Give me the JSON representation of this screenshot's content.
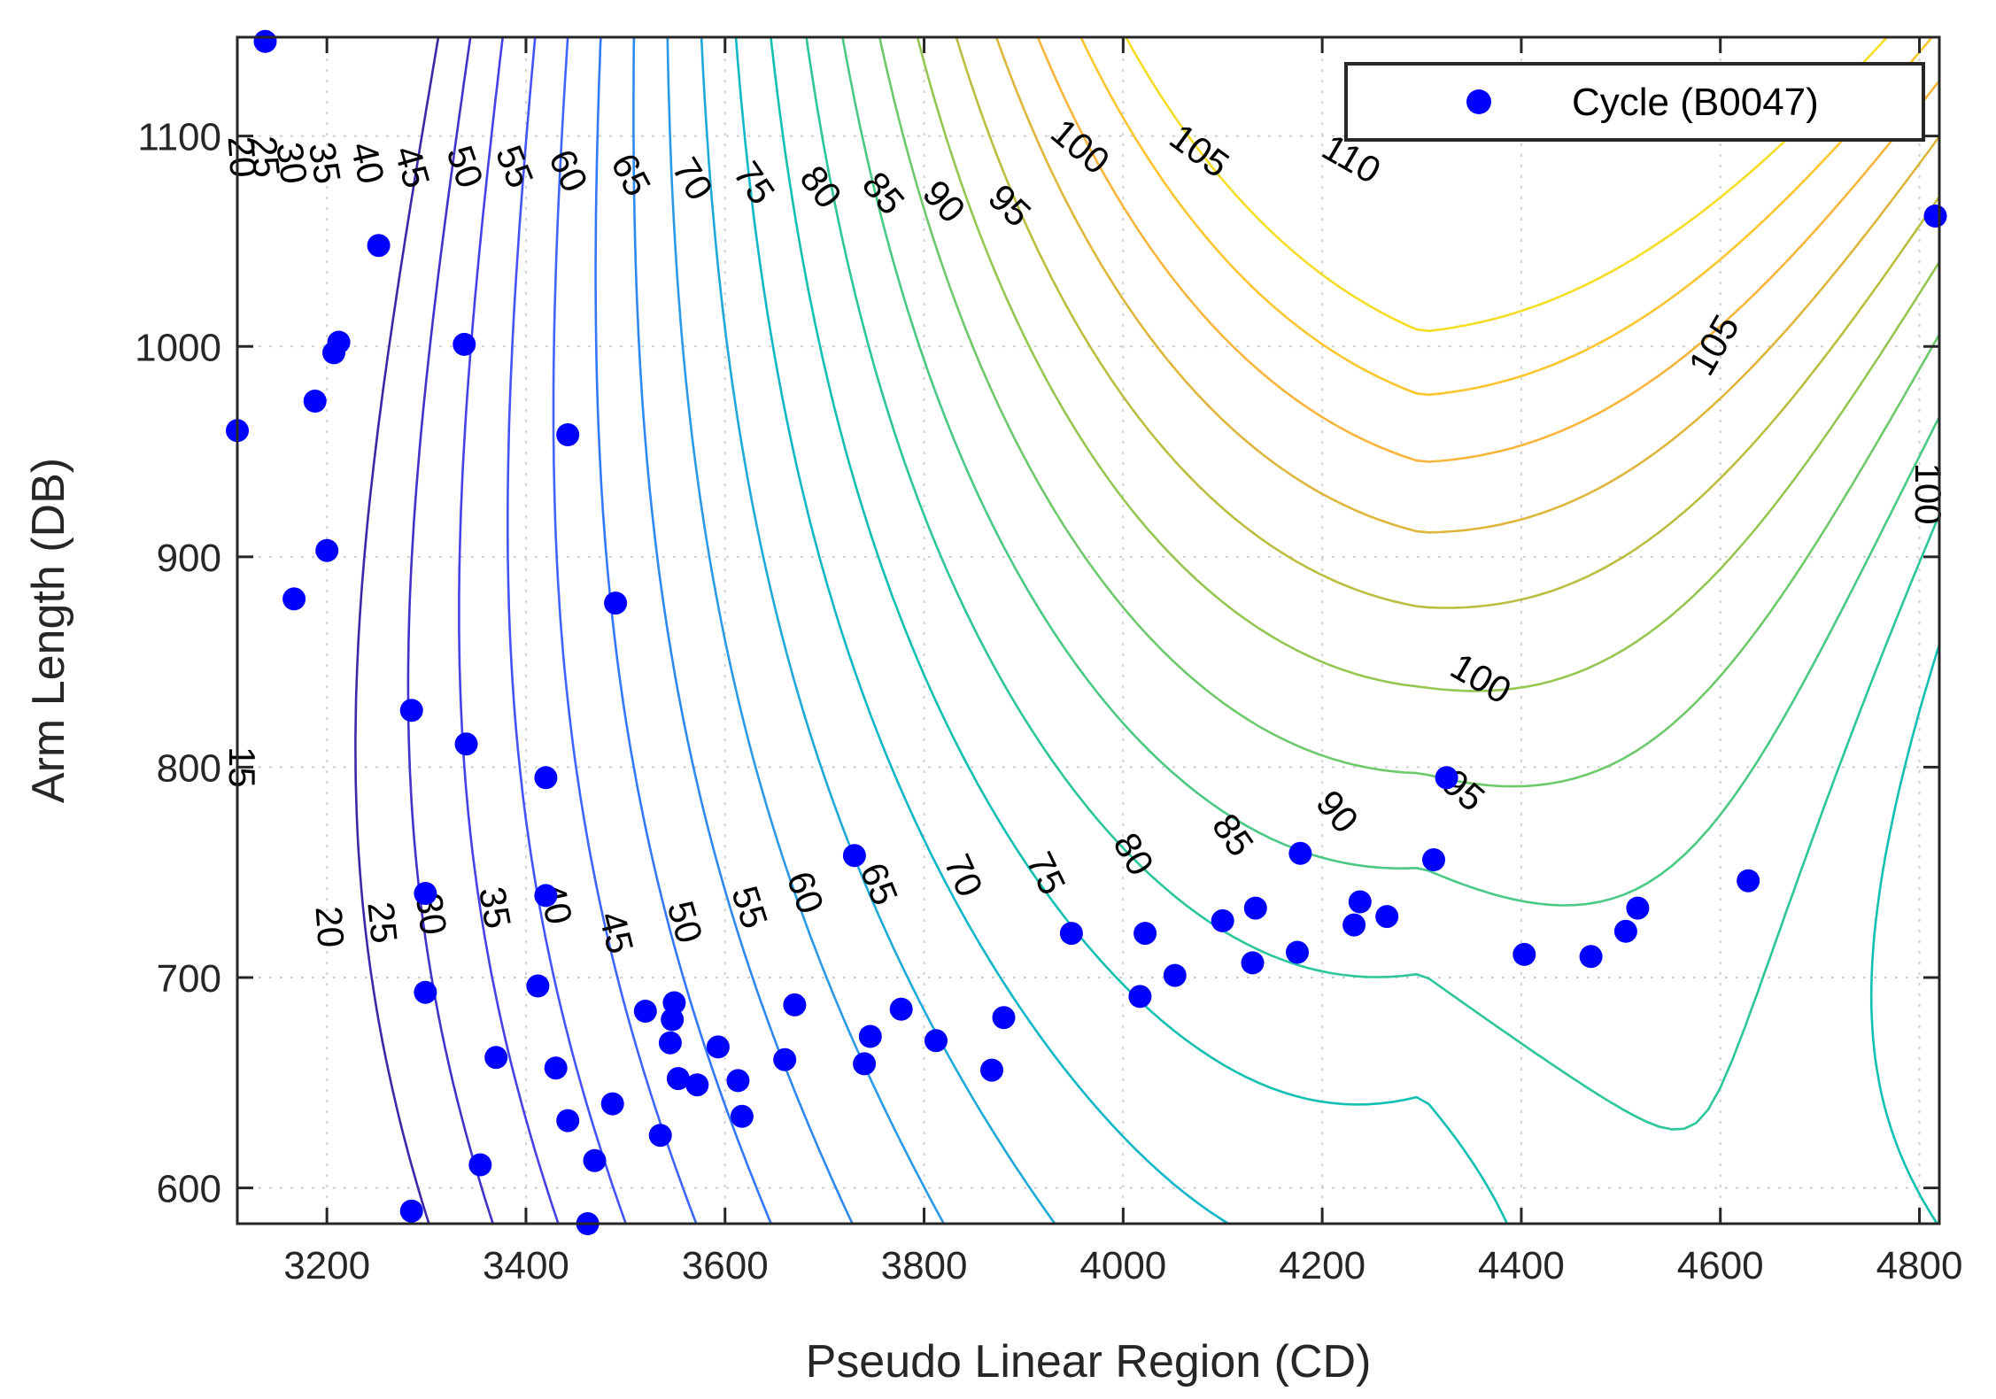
{
  "chart_data": {
    "type": "scatter",
    "overlay": "contour",
    "xlabel": "Pseudo Linear Region (CD)",
    "ylabel": "Arm Length (DB)",
    "xlim": [
      3110,
      4820
    ],
    "ylim": [
      583,
      1147
    ],
    "xticks": [
      3200,
      3400,
      3600,
      3800,
      4000,
      4200,
      4400,
      4600,
      4800
    ],
    "yticks": [
      600,
      700,
      800,
      900,
      1000,
      1100
    ],
    "grid": true,
    "legend_position": "top-right",
    "legend": [
      "Cycle (B0047)"
    ],
    "series": [
      {
        "name": "Cycle (B0047)",
        "color": "#0000ff",
        "points": [
          [
            3138,
            1145
          ],
          [
            3110,
            960
          ],
          [
            3252,
            1048
          ],
          [
            3212,
            1002
          ],
          [
            3207,
            997
          ],
          [
            3338,
            1001
          ],
          [
            3188,
            974
          ],
          [
            3442,
            958
          ],
          [
            3200,
            903
          ],
          [
            3167,
            880
          ],
          [
            3490,
            878
          ],
          [
            3285,
            827
          ],
          [
            3340,
            811
          ],
          [
            3420,
            795
          ],
          [
            3730,
            758
          ],
          [
            4178,
            759
          ],
          [
            4312,
            756
          ],
          [
            4325,
            795
          ],
          [
            4628,
            746
          ],
          [
            4816,
            1062
          ],
          [
            3299,
            740
          ],
          [
            3420,
            739
          ],
          [
            3948,
            721
          ],
          [
            4022,
            721
          ],
          [
            4100,
            727
          ],
          [
            4133,
            733
          ],
          [
            4238,
            736
          ],
          [
            4265,
            729
          ],
          [
            4232,
            725
          ],
          [
            4517,
            733
          ],
          [
            4505,
            722
          ],
          [
            4130,
            707
          ],
          [
            4175,
            712
          ],
          [
            4052,
            701
          ],
          [
            4403,
            711
          ],
          [
            4470,
            710
          ],
          [
            3412,
            696
          ],
          [
            3299,
            693
          ],
          [
            4017,
            691
          ],
          [
            3520,
            684
          ],
          [
            3549,
            688
          ],
          [
            3670,
            687
          ],
          [
            3777,
            685
          ],
          [
            3547,
            680
          ],
          [
            3880,
            681
          ],
          [
            3746,
            672
          ],
          [
            3812,
            670
          ],
          [
            3545,
            669
          ],
          [
            3593,
            667
          ],
          [
            3370,
            662
          ],
          [
            3660,
            661
          ],
          [
            3740,
            659
          ],
          [
            3430,
            657
          ],
          [
            3868,
            656
          ],
          [
            3553,
            652
          ],
          [
            3613,
            651
          ],
          [
            3572,
            649
          ],
          [
            3487,
            640
          ],
          [
            3617,
            634
          ],
          [
            3442,
            632
          ],
          [
            3535,
            625
          ],
          [
            3469,
            613
          ],
          [
            3354,
            611
          ],
          [
            3285,
            589
          ],
          [
            3462,
            583
          ]
        ]
      }
    ],
    "contours": [
      {
        "level": 15,
        "color": "#3e26a8"
      },
      {
        "level": 20,
        "color": "#4132c8"
      },
      {
        "level": 25,
        "color": "#4442e5"
      },
      {
        "level": 30,
        "color": "#4453f8"
      },
      {
        "level": 35,
        "color": "#3e64fe"
      },
      {
        "level": 40,
        "color": "#3377fb"
      },
      {
        "level": 45,
        "color": "#2d89f0"
      },
      {
        "level": 50,
        "color": "#2a9ae6"
      },
      {
        "level": 55,
        "color": "#1eaad8"
      },
      {
        "level": 60,
        "color": "#10b7c6"
      },
      {
        "level": 65,
        "color": "#11c0b1"
      },
      {
        "level": 70,
        "color": "#2bc69a"
      },
      {
        "level": 75,
        "color": "#4ac985"
      },
      {
        "level": 80,
        "color": "#6ec96c"
      },
      {
        "level": 85,
        "color": "#95c652"
      },
      {
        "level": 90,
        "color": "#bbbe3f"
      },
      {
        "level": 95,
        "color": "#ddb63b"
      },
      {
        "level": 100,
        "color": "#f7b53c"
      },
      {
        "level": 105,
        "color": "#fbc52d"
      },
      {
        "level": 110,
        "color": "#f5dd26"
      }
    ],
    "contour_labels": [
      {
        "text": "20",
        "x": 3112,
        "y": 1090,
        "angle": 86
      },
      {
        "text": "25",
        "x": 3135,
        "y": 1090,
        "angle": 84
      },
      {
        "text": "30",
        "x": 3162,
        "y": 1087,
        "angle": 82
      },
      {
        "text": "35",
        "x": 3195,
        "y": 1087,
        "angle": 80
      },
      {
        "text": "40",
        "x": 3238,
        "y": 1087,
        "angle": 77
      },
      {
        "text": "45",
        "x": 3283,
        "y": 1085,
        "angle": 74
      },
      {
        "text": "50",
        "x": 3336,
        "y": 1085,
        "angle": 71
      },
      {
        "text": "55",
        "x": 3386,
        "y": 1085,
        "angle": 68
      },
      {
        "text": "60",
        "x": 3440,
        "y": 1083,
        "angle": 65
      },
      {
        "text": "65",
        "x": 3503,
        "y": 1081,
        "angle": 62
      },
      {
        "text": "70",
        "x": 3565,
        "y": 1079,
        "angle": 59
      },
      {
        "text": "75",
        "x": 3627,
        "y": 1077,
        "angle": 56
      },
      {
        "text": "80",
        "x": 3694,
        "y": 1075,
        "angle": 53
      },
      {
        "text": "85",
        "x": 3757,
        "y": 1072,
        "angle": 50
      },
      {
        "text": "90",
        "x": 3818,
        "y": 1068,
        "angle": 47
      },
      {
        "text": "95",
        "x": 3884,
        "y": 1066,
        "angle": 44
      },
      {
        "text": "100",
        "x": 3955,
        "y": 1094,
        "angle": 40
      },
      {
        "text": "105",
        "x": 4075,
        "y": 1092,
        "angle": 36
      },
      {
        "text": "110",
        "x": 4228,
        "y": 1088,
        "angle": 30
      },
      {
        "text": "105",
        "x": 4596,
        "y": 1000,
        "angle": -60
      },
      {
        "text": "100",
        "x": 4806,
        "y": 930,
        "angle": 90
      },
      {
        "text": "100",
        "x": 4358,
        "y": 841,
        "angle": 30
      },
      {
        "text": "95",
        "x": 4340,
        "y": 788,
        "angle": 40
      },
      {
        "text": "90",
        "x": 4213,
        "y": 778,
        "angle": 50
      },
      {
        "text": "85",
        "x": 4108,
        "y": 767,
        "angle": 55
      },
      {
        "text": "80",
        "x": 4008,
        "y": 758,
        "angle": 60
      },
      {
        "text": "75",
        "x": 3920,
        "y": 749,
        "angle": 64
      },
      {
        "text": "70",
        "x": 3837,
        "y": 748,
        "angle": 66
      },
      {
        "text": "65",
        "x": 3752,
        "y": 744,
        "angle": 68
      },
      {
        "text": "60",
        "x": 3678,
        "y": 740,
        "angle": 70
      },
      {
        "text": "55",
        "x": 3622,
        "y": 733,
        "angle": 72
      },
      {
        "text": "50",
        "x": 3557,
        "y": 726,
        "angle": 74
      },
      {
        "text": "45",
        "x": 3488,
        "y": 721,
        "angle": 76
      },
      {
        "text": "40",
        "x": 3427,
        "y": 735,
        "angle": 78
      },
      {
        "text": "35",
        "x": 3366,
        "y": 733,
        "angle": 80
      },
      {
        "text": "30",
        "x": 3302,
        "y": 730,
        "angle": 82
      },
      {
        "text": "25",
        "x": 3253,
        "y": 726,
        "angle": 84
      },
      {
        "text": "20",
        "x": 3200,
        "y": 724,
        "angle": 86
      },
      {
        "text": "15",
        "x": 3112,
        "y": 800,
        "angle": 90
      }
    ]
  }
}
